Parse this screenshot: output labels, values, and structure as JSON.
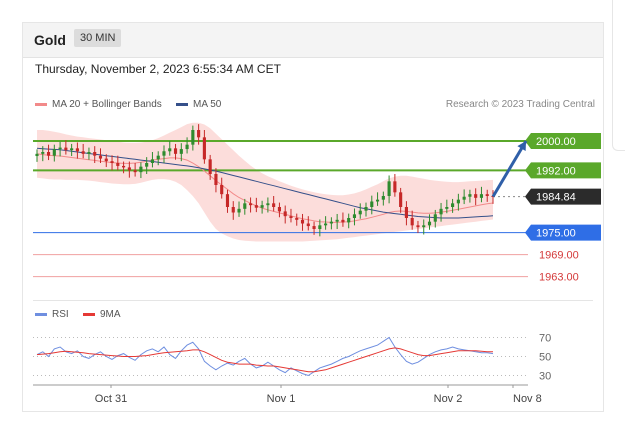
{
  "header": {
    "title": "Gold",
    "timeframe": "30 MIN"
  },
  "datetime": "Thursday, November 2, 2023 6:55:34 AM CET",
  "legend": {
    "ma20_label": "MA 20 + Bollinger Bands",
    "ma50_label": "MA 50",
    "research": "Research © 2023 Trading Central"
  },
  "rsi_legend": {
    "rsi_label": "RSI",
    "ma_label": "9MA"
  },
  "colors": {
    "ma20": "#f28a8a",
    "ma50": "#35508a",
    "band_fill": "#fbd7d5",
    "resistance": "#5aa82a",
    "support_blue": "#2f6ee6",
    "support_red": "#f0a0a0",
    "current": "#2b2b2b",
    "rsi": "#6f8fe0",
    "rsi_ma": "#e53935",
    "candle_up": "#2e8b2e",
    "candle_down": "#c62828",
    "arrow": "#2f5fa8"
  },
  "chart_data": [
    {
      "type": "candlestick",
      "x_labels": [
        "Oct 31",
        "Nov 1",
        "Nov 2",
        "Nov 8"
      ],
      "ylim": [
        1958,
        2006
      ],
      "levels": [
        {
          "value": 2000.0,
          "label": "2000.00",
          "kind": "resistance"
        },
        {
          "value": 1992.0,
          "label": "1992.00",
          "kind": "resistance"
        },
        {
          "value": 1984.84,
          "label": "1984.84",
          "kind": "current"
        },
        {
          "value": 1975.0,
          "label": "1975.00",
          "kind": "support"
        },
        {
          "value": 1969.0,
          "label": "1969.00",
          "kind": "support-minor"
        },
        {
          "value": 1963.0,
          "label": "1963.00",
          "kind": "support-minor"
        }
      ],
      "close": [
        1996.5,
        1997.0,
        1996.0,
        1997.8,
        1998.2,
        1997.5,
        1998.0,
        1997.2,
        1996.5,
        1997.0,
        1996.0,
        1995.2,
        1994.5,
        1994.0,
        1993.2,
        1992.8,
        1992.0,
        1991.5,
        1993.0,
        1994.0,
        1995.0,
        1996.0,
        1997.2,
        1998.0,
        1996.5,
        1997.8,
        1999.0,
        2003.0,
        2001.0,
        1995.0,
        1991.0,
        1988.0,
        1985.5,
        1982.0,
        1980.5,
        1981.5,
        1983.0,
        1982.5,
        1981.8,
        1982.5,
        1983.0,
        1982.0,
        1980.8,
        1979.5,
        1979.0,
        1978.5,
        1977.5,
        1976.8,
        1976.0,
        1977.0,
        1977.5,
        1978.0,
        1978.5,
        1977.8,
        1979.0,
        1980.0,
        1981.0,
        1982.0,
        1983.5,
        1984.0,
        1985.0,
        1989.0,
        1986.0,
        1982.0,
        1979.0,
        1977.0,
        1976.5,
        1977.0,
        1978.0,
        1980.0,
        1981.5,
        1982.0,
        1983.0,
        1984.0,
        1984.8,
        1985.5,
        1984.5,
        1985.5,
        1985.0,
        1984.84
      ],
      "ma20": [
        1996.5,
        1996.3,
        1996.1,
        1996.0,
        1995.9,
        1995.7,
        1995.5,
        1995.3,
        1995.1,
        1994.9,
        1994.7,
        1994.5,
        1994.3,
        1994.1,
        1994.0,
        1993.9,
        1993.9,
        1994.0,
        1994.2,
        1994.5,
        1994.8,
        1995.0,
        1995.2,
        1995.4,
        1995.4,
        1995.2,
        1994.8,
        1994.0,
        1993.0,
        1991.8,
        1990.5,
        1989.2,
        1988.0,
        1986.8,
        1985.6,
        1984.6,
        1983.8,
        1983.0,
        1982.3,
        1981.7,
        1981.2,
        1980.8,
        1980.4,
        1980.0,
        1979.6,
        1979.2,
        1978.8,
        1978.5,
        1978.2,
        1978.0,
        1977.9,
        1977.8,
        1977.8,
        1977.9,
        1978.0,
        1978.2,
        1978.5,
        1978.8,
        1979.2,
        1979.6,
        1980.0,
        1980.5,
        1980.8,
        1980.9,
        1980.8,
        1980.6,
        1980.4,
        1980.3,
        1980.3,
        1980.4,
        1980.6,
        1980.8,
        1981.1,
        1981.4,
        1981.7,
        1982.0,
        1982.3,
        1982.6,
        1982.9,
        1983.1
      ],
      "ma50": [
        1998.0,
        1997.9,
        1997.8,
        1997.7,
        1997.6,
        1997.4,
        1997.2,
        1997.0,
        1996.8,
        1996.6,
        1996.4,
        1996.2,
        1996.0,
        1995.8,
        1995.6,
        1995.4,
        1995.2,
        1995.0,
        1994.8,
        1994.6,
        1994.4,
        1994.2,
        1994.0,
        1993.8,
        1993.6,
        1993.4,
        1993.2,
        1993.0,
        1992.7,
        1992.4,
        1992.1,
        1991.8,
        1991.4,
        1991.0,
        1990.6,
        1990.2,
        1989.8,
        1989.4,
        1989.0,
        1988.6,
        1988.2,
        1987.8,
        1987.4,
        1987.0,
        1986.6,
        1986.2,
        1985.8,
        1985.4,
        1985.0,
        1984.6,
        1984.2,
        1983.8,
        1983.4,
        1983.0,
        1982.6,
        1982.2,
        1981.8,
        1981.5,
        1981.2,
        1980.9,
        1980.6,
        1980.4,
        1980.2,
        1980.0,
        1979.8,
        1979.6,
        1979.4,
        1979.3,
        1979.2,
        1979.1,
        1979.0,
        1979.0,
        1979.0,
        1979.0,
        1979.1,
        1979.2,
        1979.3,
        1979.4,
        1979.5,
        1979.6
      ],
      "band_upper": [
        2003.0,
        2003.0,
        2002.8,
        2002.5,
        2002.2,
        2001.8,
        2001.5,
        2001.2,
        2001.0,
        2000.8,
        2000.6,
        2000.4,
        2000.2,
        2000.0,
        1999.8,
        1999.6,
        1999.5,
        1999.5,
        1999.6,
        1999.8,
        2000.2,
        2000.8,
        2001.5,
        2002.3,
        2003.0,
        2003.8,
        2004.6,
        2005.0,
        2005.0,
        2004.5,
        2003.5,
        2002.0,
        2000.5,
        1999.0,
        1997.5,
        1996.0,
        1994.6,
        1993.3,
        1992.2,
        1991.2,
        1990.4,
        1989.7,
        1989.0,
        1988.4,
        1987.8,
        1987.3,
        1986.8,
        1986.4,
        1986.0,
        1985.7,
        1985.5,
        1985.3,
        1985.2,
        1985.2,
        1985.4,
        1985.7,
        1986.2,
        1986.8,
        1987.5,
        1988.2,
        1989.0,
        1989.8,
        1990.3,
        1990.5,
        1990.5,
        1990.3,
        1990.0,
        1989.7,
        1989.4,
        1989.2,
        1989.0,
        1988.9,
        1988.8,
        1988.8,
        1988.9,
        1989.0,
        1989.1,
        1989.2,
        1989.3,
        1989.4
      ],
      "band_lower": [
        1990.0,
        1989.8,
        1989.6,
        1989.5,
        1989.5,
        1989.4,
        1989.4,
        1989.4,
        1989.3,
        1989.2,
        1989.0,
        1988.8,
        1988.6,
        1988.4,
        1988.3,
        1988.2,
        1988.2,
        1988.3,
        1988.6,
        1989.0,
        1989.4,
        1989.6,
        1989.6,
        1989.4,
        1988.9,
        1988.0,
        1986.6,
        1985.0,
        1983.0,
        1980.5,
        1978.0,
        1976.0,
        1974.8,
        1974.0,
        1973.4,
        1973.0,
        1972.8,
        1972.7,
        1972.6,
        1972.6,
        1972.6,
        1972.6,
        1972.6,
        1972.6,
        1972.6,
        1972.6,
        1972.6,
        1972.7,
        1972.8,
        1972.9,
        1973.0,
        1973.1,
        1973.2,
        1973.4,
        1973.6,
        1973.8,
        1974.0,
        1974.2,
        1974.4,
        1974.6,
        1974.8,
        1975.0,
        1975.2,
        1975.4,
        1975.6,
        1975.8,
        1976.0,
        1976.2,
        1976.4,
        1976.6,
        1976.8,
        1977.0,
        1977.2,
        1977.4,
        1977.6,
        1977.8,
        1978.0,
        1978.2,
        1978.4,
        1978.6
      ],
      "forecast_arrow": {
        "from": 1984.84,
        "to": 2000.0
      }
    },
    {
      "type": "line",
      "ylim": [
        20,
        80
      ],
      "y_ticks": [
        70,
        50,
        30
      ],
      "series": [
        {
          "name": "RSI",
          "values": [
            52,
            55,
            50,
            58,
            60,
            55,
            53,
            56,
            50,
            48,
            52,
            55,
            50,
            47,
            51,
            53,
            49,
            46,
            52,
            56,
            58,
            55,
            60,
            52,
            48,
            56,
            62,
            65,
            58,
            45,
            40,
            36,
            40,
            43,
            41,
            45,
            48,
            42,
            38,
            40,
            44,
            40,
            36,
            33,
            38,
            35,
            32,
            30,
            34,
            38,
            40,
            42,
            45,
            48,
            50,
            53,
            56,
            58,
            60,
            62,
            66,
            70,
            60,
            52,
            45,
            42,
            44,
            48,
            52,
            55,
            57,
            58,
            60,
            58,
            57,
            56,
            55,
            54,
            54,
            53
          ]
        },
        {
          "name": "9MA",
          "values": [
            52,
            52.5,
            53,
            54,
            55,
            55.5,
            55,
            54.5,
            54,
            53,
            52.5,
            52,
            51.5,
            51,
            50.5,
            50,
            50,
            50,
            50.5,
            51,
            52,
            53,
            54,
            54.5,
            55,
            55.5,
            56,
            57,
            57,
            55,
            52,
            49,
            46,
            44,
            43,
            42,
            42,
            42,
            41,
            40.5,
            40,
            40,
            39,
            38,
            37,
            36,
            35,
            34,
            34,
            35,
            36,
            38,
            40,
            42,
            44,
            46,
            48,
            50,
            52,
            54,
            56,
            58,
            59,
            58,
            56,
            54,
            52,
            51,
            51,
            52,
            53,
            54,
            55,
            56,
            56,
            56,
            56,
            55.5,
            55,
            55
          ]
        }
      ]
    }
  ]
}
